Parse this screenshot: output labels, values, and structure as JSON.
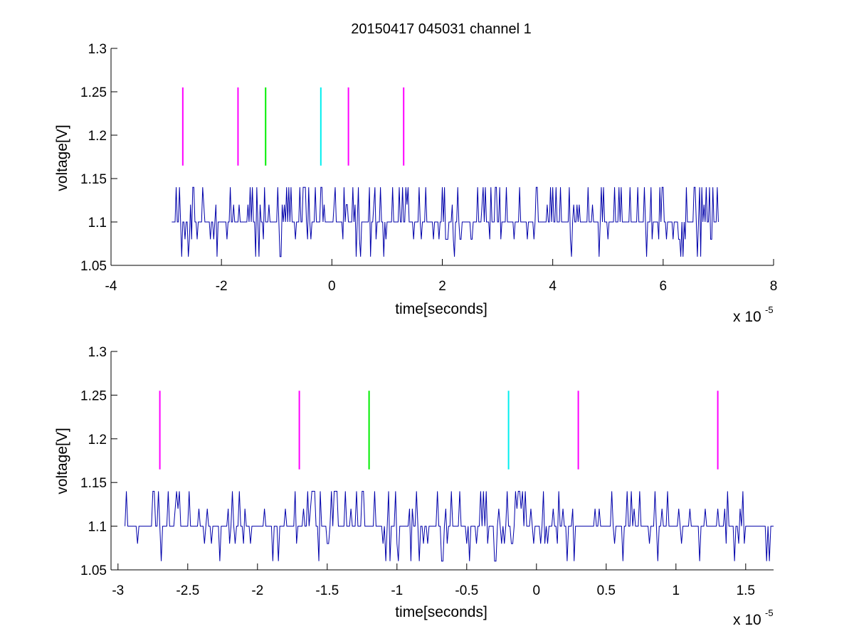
{
  "figure": {
    "title": "20150417 045031 channel 1",
    "background": "#ffffff"
  },
  "colors": {
    "signal": "#0000aa",
    "marker_magenta": "#ff00ff",
    "marker_green": "#00ee00",
    "marker_cyan": "#00eeee"
  },
  "chart_data": [
    {
      "type": "line",
      "title": "20150417 045031 channel 1",
      "xlabel": "time[seconds]",
      "ylabel": "voltage[V]",
      "x_multiplier": "x 10",
      "x_multiplier_exp": "-5",
      "xlim": [
        -4,
        8
      ],
      "ylim": [
        1.05,
        1.3
      ],
      "xticks": [
        -4,
        -2,
        0,
        2,
        4,
        6,
        8
      ],
      "xtick_labels": [
        "-4",
        "-2",
        "0",
        "2",
        "4",
        "6",
        "8"
      ],
      "yticks": [
        1.05,
        1.1,
        1.15,
        1.2,
        1.25,
        1.3
      ],
      "ytick_labels": [
        "1.05",
        "1.1",
        "1.15",
        "1.2",
        "1.25",
        "1.3"
      ],
      "grid": false,
      "series": [
        {
          "values_allowed": [
            1.06,
            1.08,
            1.1,
            1.12,
            1.14
          ],
          "baseline": 1.1,
          "x_range": [
            -2.9,
            7.0
          ],
          "step": 0.02,
          "seed": 1701
        }
      ],
      "markers": [
        {
          "x": -2.7,
          "y_range": [
            1.165,
            1.255
          ],
          "color": "#ff00ff"
        },
        {
          "x": -1.7,
          "y_range": [
            1.165,
            1.255
          ],
          "color": "#ff00ff"
        },
        {
          "x": -1.2,
          "y_range": [
            1.165,
            1.255
          ],
          "color": "#00ee00"
        },
        {
          "x": -0.2,
          "y_range": [
            1.165,
            1.255
          ],
          "color": "#00eeee"
        },
        {
          "x": 0.3,
          "y_range": [
            1.165,
            1.255
          ],
          "color": "#ff00ff"
        },
        {
          "x": 1.3,
          "y_range": [
            1.165,
            1.255
          ],
          "color": "#ff00ff"
        }
      ]
    },
    {
      "type": "line",
      "title": "",
      "xlabel": "time[seconds]",
      "ylabel": "voltage[V]",
      "x_multiplier": "x 10",
      "x_multiplier_exp": "-5",
      "xlim": [
        -3.05,
        1.7
      ],
      "ylim": [
        1.05,
        1.3
      ],
      "xticks": [
        -3,
        -2.5,
        -2,
        -1.5,
        -1,
        -0.5,
        0,
        0.5,
        1,
        1.5
      ],
      "xtick_labels": [
        "-3",
        "-2.5",
        "-2",
        "-1.5",
        "-1",
        "-0.5",
        "0",
        "0.5",
        "1",
        "1.5"
      ],
      "yticks": [
        1.05,
        1.1,
        1.15,
        1.2,
        1.25,
        1.3
      ],
      "ytick_labels": [
        "1.05",
        "1.1",
        "1.15",
        "1.2",
        "1.25",
        "1.3"
      ],
      "grid": false,
      "series": [
        {
          "values_allowed": [
            1.06,
            1.08,
            1.1,
            1.12,
            1.14
          ],
          "baseline": 1.1,
          "x_range": [
            -2.95,
            1.7
          ],
          "step": 0.01,
          "seed": 4242
        }
      ],
      "markers": [
        {
          "x": -2.7,
          "y_range": [
            1.165,
            1.255
          ],
          "color": "#ff00ff"
        },
        {
          "x": -1.7,
          "y_range": [
            1.165,
            1.255
          ],
          "color": "#ff00ff"
        },
        {
          "x": -1.2,
          "y_range": [
            1.165,
            1.255
          ],
          "color": "#00ee00"
        },
        {
          "x": -0.2,
          "y_range": [
            1.165,
            1.255
          ],
          "color": "#00eeee"
        },
        {
          "x": 0.3,
          "y_range": [
            1.165,
            1.255
          ],
          "color": "#ff00ff"
        },
        {
          "x": 1.3,
          "y_range": [
            1.165,
            1.255
          ],
          "color": "#ff00ff"
        }
      ]
    }
  ]
}
